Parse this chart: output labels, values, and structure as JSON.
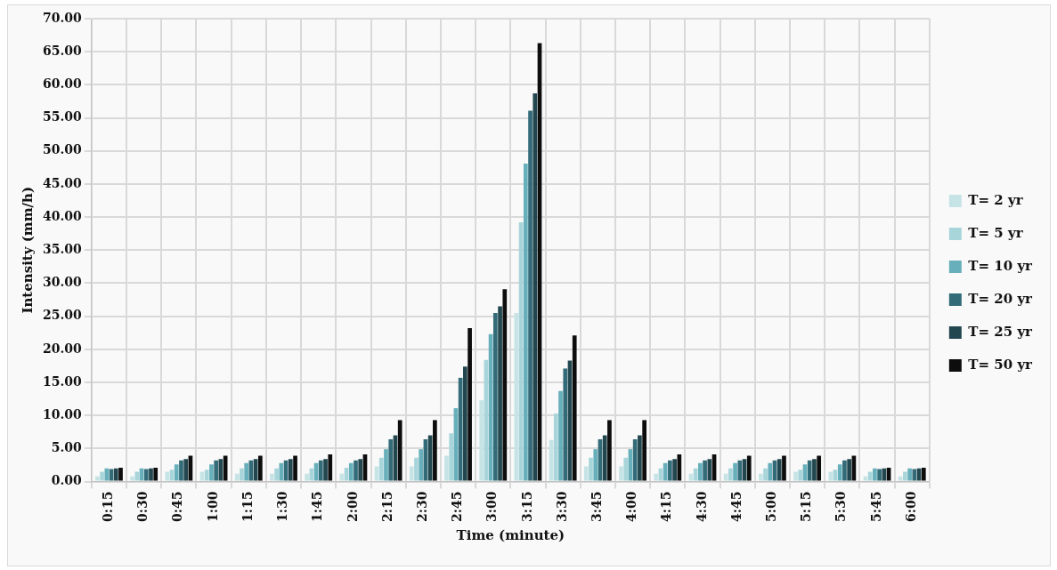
{
  "chart_data": {
    "type": "bar",
    "xlabel": "Time (minute)",
    "ylabel": "Intensity (mm/h)",
    "categories": [
      "0:15",
      "0:30",
      "0:45",
      "1:00",
      "1:15",
      "1:30",
      "1:45",
      "2:00",
      "2:15",
      "2:30",
      "2:45",
      "3:00",
      "3:15",
      "3:30",
      "3:45",
      "4:00",
      "4:15",
      "4:30",
      "4:45",
      "5:00",
      "5:15",
      "5:30",
      "5:45",
      "6:00"
    ],
    "series": [
      {
        "name": "T= 2 yr",
        "color": "#c6e3e6",
        "values": [
          0.8,
          0.8,
          1.5,
          1.5,
          1.2,
          1.2,
          1.2,
          1.2,
          2.3,
          2.3,
          3.9,
          12.3,
          25.5,
          6.3,
          2.3,
          2.3,
          1.2,
          1.2,
          1.2,
          1.2,
          1.5,
          1.5,
          0.8,
          0.8
        ]
      },
      {
        "name": "T= 5 yr",
        "color": "#a8d5da",
        "values": [
          1.5,
          1.5,
          1.8,
          1.8,
          2.0,
          2.0,
          2.0,
          2.1,
          3.6,
          3.6,
          7.3,
          18.4,
          39.2,
          10.3,
          3.6,
          3.6,
          2.0,
          2.0,
          2.0,
          2.0,
          1.8,
          1.8,
          1.5,
          1.5
        ]
      },
      {
        "name": "T= 10 yr",
        "color": "#67afba",
        "values": [
          2.0,
          2.0,
          2.6,
          2.6,
          2.8,
          2.8,
          2.8,
          2.8,
          4.9,
          4.9,
          11.1,
          22.3,
          48.1,
          13.7,
          4.9,
          4.9,
          2.8,
          2.8,
          2.8,
          2.8,
          2.6,
          2.6,
          2.0,
          2.0
        ]
      },
      {
        "name": "T= 20 yr",
        "color": "#336b78",
        "values": [
          1.9,
          1.9,
          3.2,
          3.2,
          3.2,
          3.2,
          3.2,
          3.2,
          6.4,
          6.4,
          15.7,
          25.5,
          56.1,
          17.1,
          6.4,
          6.4,
          3.2,
          3.2,
          3.2,
          3.2,
          3.2,
          3.2,
          1.9,
          1.9
        ]
      },
      {
        "name": "T= 25 yr",
        "color": "#23474f",
        "values": [
          2.0,
          2.0,
          3.4,
          3.4,
          3.4,
          3.4,
          3.4,
          3.4,
          7.0,
          7.0,
          17.4,
          26.5,
          58.7,
          18.3,
          7.0,
          7.0,
          3.4,
          3.4,
          3.4,
          3.4,
          3.4,
          3.4,
          2.0,
          2.0
        ]
      },
      {
        "name": "T= 50 yr",
        "color": "#0d0d0d",
        "values": [
          2.1,
          2.1,
          3.9,
          3.9,
          3.9,
          3.9,
          4.1,
          4.1,
          9.3,
          9.3,
          23.2,
          29.1,
          66.3,
          22.1,
          9.3,
          9.3,
          4.1,
          4.1,
          3.9,
          3.9,
          3.9,
          3.9,
          2.1,
          2.1
        ]
      }
    ],
    "ylim": [
      0,
      70
    ],
    "yticks": [
      {
        "value": 0,
        "label": "0.00"
      },
      {
        "value": 5,
        "label": "5.00"
      },
      {
        "value": 10,
        "label": "10.00"
      },
      {
        "value": 15,
        "label": "15.00"
      },
      {
        "value": 20,
        "label": "20.00"
      },
      {
        "value": 25,
        "label": "25.00"
      },
      {
        "value": 30,
        "label": "30.00"
      },
      {
        "value": 35,
        "label": "35.00"
      },
      {
        "value": 40,
        "label": "40.00"
      },
      {
        "value": 45,
        "label": "45.00"
      },
      {
        "value": 50,
        "label": "50.00"
      },
      {
        "value": 55,
        "label": "55.00"
      },
      {
        "value": 60,
        "label": "60.00"
      },
      {
        "value": 65,
        "label": "65.00"
      },
      {
        "value": 70,
        "label": "70.00"
      }
    ],
    "grid": true,
    "legend": "right"
  }
}
